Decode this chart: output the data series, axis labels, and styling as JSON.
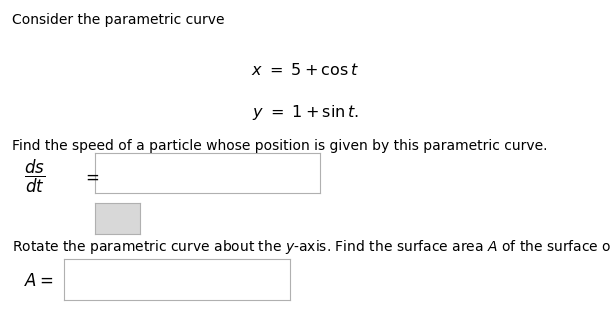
{
  "bg_color": "#ffffff",
  "title_text": "Consider the parametric curve",
  "speed_text": "Find the speed of a particle whose position is given by this parametric curve.",
  "rotate_text": "Rotate the parametric curve about the $y$-axis. Find the surface area $A$ of the surface obtained.",
  "figw": 6.1,
  "figh": 3.12,
  "dpi": 100
}
